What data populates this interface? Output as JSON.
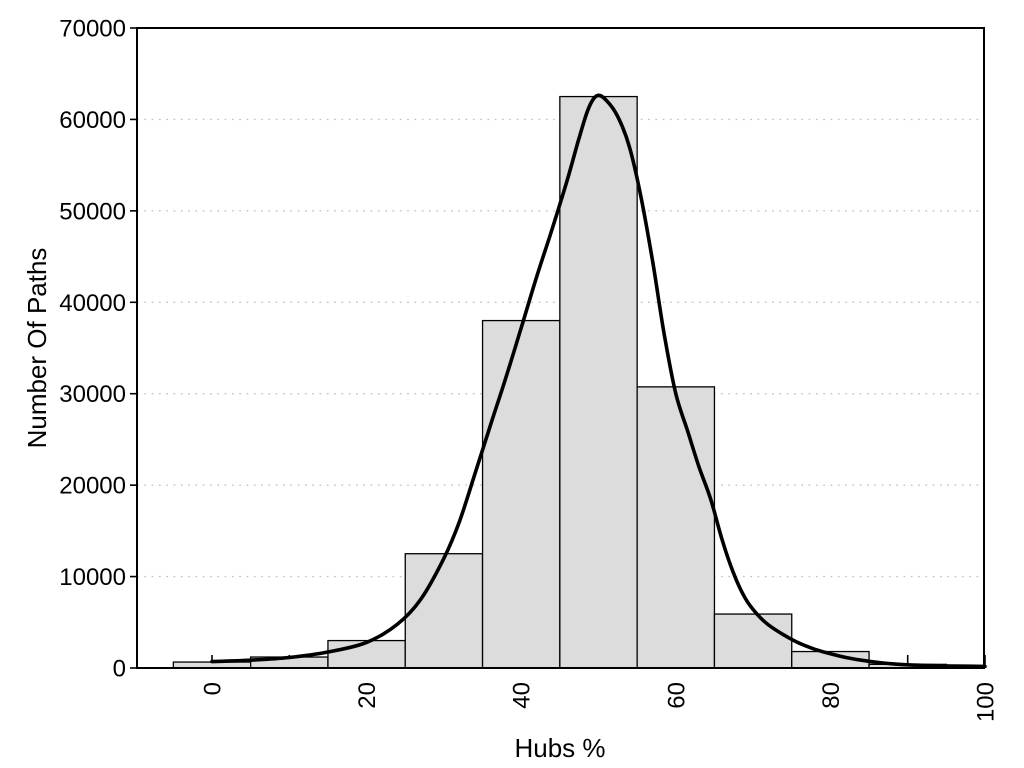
{
  "chart_data": {
    "type": "bar",
    "subtype": "histogram-with-density-curve",
    "title": "",
    "xlabel": "Hubs %",
    "ylabel": "Number Of Paths",
    "xlim": [
      -9.7,
      100
    ],
    "ylim": [
      0,
      70000
    ],
    "x_ticks_labeled": [
      0,
      20,
      40,
      60,
      80,
      100
    ],
    "x_ticks_minor": [
      10,
      30,
      50,
      70,
      90
    ],
    "y_ticks": [
      0,
      10000,
      20000,
      30000,
      40000,
      50000,
      60000,
      70000
    ],
    "grid": "horizontal-dotted",
    "legend": "none",
    "bin_width": 10,
    "categories": [
      0,
      10,
      20,
      30,
      40,
      50,
      60,
      70,
      80,
      90
    ],
    "values": [
      650,
      1200,
      3000,
      12500,
      38000,
      62500,
      30750,
      5900,
      1800,
      400
    ],
    "bins": [
      {
        "center": 0,
        "count": 650
      },
      {
        "center": 10,
        "count": 1200
      },
      {
        "center": 20,
        "count": 3000
      },
      {
        "center": 30,
        "count": 12500
      },
      {
        "center": 40,
        "count": 38000
      },
      {
        "center": 50,
        "count": 62500
      },
      {
        "center": 60,
        "count": 30750
      },
      {
        "center": 70,
        "count": 5900
      },
      {
        "center": 80,
        "count": 1800
      },
      {
        "center": 90,
        "count": 400
      }
    ],
    "density_curve": [
      [
        0,
        700
      ],
      [
        5,
        850
      ],
      [
        10,
        1150
      ],
      [
        15,
        1750
      ],
      [
        20,
        2800
      ],
      [
        24,
        4800
      ],
      [
        27,
        7500
      ],
      [
        30,
        12000
      ],
      [
        32,
        16000
      ],
      [
        34,
        21200
      ],
      [
        36,
        26500
      ],
      [
        38,
        31700
      ],
      [
        40,
        37200
      ],
      [
        42,
        42800
      ],
      [
        44,
        48000
      ],
      [
        46,
        53500
      ],
      [
        47.5,
        58000
      ],
      [
        48.7,
        61200
      ],
      [
        49.8,
        62600
      ],
      [
        51,
        62100
      ],
      [
        52.5,
        60300
      ],
      [
        54,
        57000
      ],
      [
        55.5,
        51500
      ],
      [
        57,
        44500
      ],
      [
        58.5,
        36500
      ],
      [
        60,
        30000
      ],
      [
        61.5,
        26000
      ],
      [
        63,
        22000
      ],
      [
        64.5,
        18500
      ],
      [
        66,
        14000
      ],
      [
        67.5,
        10300
      ],
      [
        69,
        7600
      ],
      [
        70.5,
        5900
      ],
      [
        72,
        4700
      ],
      [
        74,
        3600
      ],
      [
        76,
        2700
      ],
      [
        78,
        2050
      ],
      [
        80,
        1550
      ],
      [
        82,
        1150
      ],
      [
        84,
        850
      ],
      [
        86,
        620
      ],
      [
        88,
        460
      ],
      [
        90,
        350
      ],
      [
        93,
        260
      ],
      [
        96,
        210
      ],
      [
        100,
        180
      ]
    ],
    "colors": {
      "background": "#ffffff",
      "bar_fill": "#dcdcdc",
      "bar_stroke": "#000000",
      "curve": "#000000",
      "grid": "#c6c6c6",
      "axis": "#000000",
      "text": "#000000"
    }
  }
}
